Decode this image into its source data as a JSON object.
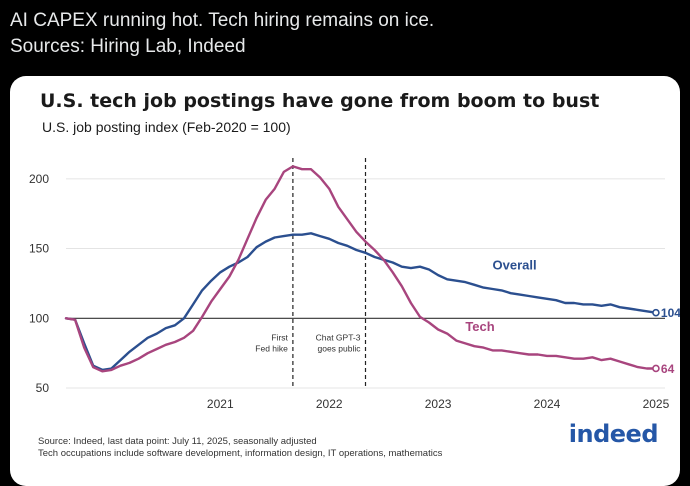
{
  "tweet": {
    "line1": "AI CAPEX running hot. Tech hiring remains on ice.",
    "line2": "Sources: Hiring Lab, Indeed"
  },
  "chart_data": {
    "type": "line",
    "title": "U.S. tech job postings have gone from boom to bust",
    "subtitle": "U.S. job posting index (Feb-2020 = 100)",
    "xlabel": "",
    "ylabel": "",
    "xlim": [
      "2020-02",
      "2025-08"
    ],
    "ylim": [
      50,
      215
    ],
    "yticks": [
      50,
      100,
      150,
      200
    ],
    "xticks": [
      "2021",
      "2022",
      "2023",
      "2024",
      "2025"
    ],
    "grid": true,
    "baseline": 100,
    "series": [
      {
        "name": "Overall",
        "color": "#2b4f8f",
        "end_label": "104",
        "points": [
          [
            "2020-02",
            100
          ],
          [
            "2020-03",
            99
          ],
          [
            "2020-04",
            82
          ],
          [
            "2020-05",
            66
          ],
          [
            "2020-06",
            63
          ],
          [
            "2020-07",
            64
          ],
          [
            "2020-08",
            70
          ],
          [
            "2020-09",
            76
          ],
          [
            "2020-10",
            81
          ],
          [
            "2020-11",
            86
          ],
          [
            "2020-12",
            89
          ],
          [
            "2021-01",
            93
          ],
          [
            "2021-02",
            95
          ],
          [
            "2021-03",
            100
          ],
          [
            "2021-04",
            110
          ],
          [
            "2021-05",
            120
          ],
          [
            "2021-06",
            127
          ],
          [
            "2021-07",
            133
          ],
          [
            "2021-08",
            137
          ],
          [
            "2021-09",
            140
          ],
          [
            "2021-10",
            144
          ],
          [
            "2021-11",
            151
          ],
          [
            "2021-12",
            155
          ],
          [
            "2022-01",
            158
          ],
          [
            "2022-02",
            159
          ],
          [
            "2022-03",
            160
          ],
          [
            "2022-04",
            160
          ],
          [
            "2022-05",
            161
          ],
          [
            "2022-06",
            159
          ],
          [
            "2022-07",
            157
          ],
          [
            "2022-08",
            154
          ],
          [
            "2022-09",
            152
          ],
          [
            "2022-10",
            149
          ],
          [
            "2022-11",
            147
          ],
          [
            "2022-12",
            144
          ],
          [
            "2023-01",
            142
          ],
          [
            "2023-02",
            140
          ],
          [
            "2023-03",
            137
          ],
          [
            "2023-04",
            136
          ],
          [
            "2023-05",
            137
          ],
          [
            "2023-06",
            135
          ],
          [
            "2023-07",
            131
          ],
          [
            "2023-08",
            128
          ],
          [
            "2023-09",
            127
          ],
          [
            "2023-10",
            126
          ],
          [
            "2023-11",
            124
          ],
          [
            "2023-12",
            122
          ],
          [
            "2024-01",
            121
          ],
          [
            "2024-02",
            120
          ],
          [
            "2024-03",
            118
          ],
          [
            "2024-04",
            117
          ],
          [
            "2024-05",
            116
          ],
          [
            "2024-06",
            115
          ],
          [
            "2024-07",
            114
          ],
          [
            "2024-08",
            113
          ],
          [
            "2024-09",
            111
          ],
          [
            "2024-10",
            111
          ],
          [
            "2024-11",
            110
          ],
          [
            "2024-12",
            110
          ],
          [
            "2025-01",
            109
          ],
          [
            "2025-02",
            110
          ],
          [
            "2025-03",
            108
          ],
          [
            "2025-04",
            107
          ],
          [
            "2025-05",
            106
          ],
          [
            "2025-06",
            105
          ],
          [
            "2025-07",
            104
          ]
        ]
      },
      {
        "name": "Tech",
        "color": "#a8457e",
        "end_label": "64",
        "points": [
          [
            "2020-02",
            100
          ],
          [
            "2020-03",
            99
          ],
          [
            "2020-04",
            79
          ],
          [
            "2020-05",
            65
          ],
          [
            "2020-06",
            62
          ],
          [
            "2020-07",
            63
          ],
          [
            "2020-08",
            66
          ],
          [
            "2020-09",
            68
          ],
          [
            "2020-10",
            71
          ],
          [
            "2020-11",
            75
          ],
          [
            "2020-12",
            78
          ],
          [
            "2021-01",
            81
          ],
          [
            "2021-02",
            83
          ],
          [
            "2021-03",
            86
          ],
          [
            "2021-04",
            91
          ],
          [
            "2021-05",
            101
          ],
          [
            "2021-06",
            112
          ],
          [
            "2021-07",
            121
          ],
          [
            "2021-08",
            130
          ],
          [
            "2021-09",
            142
          ],
          [
            "2021-10",
            157
          ],
          [
            "2021-11",
            172
          ],
          [
            "2021-12",
            185
          ],
          [
            "2022-01",
            193
          ],
          [
            "2022-02",
            205
          ],
          [
            "2022-03",
            209
          ],
          [
            "2022-04",
            207
          ],
          [
            "2022-05",
            207
          ],
          [
            "2022-06",
            201
          ],
          [
            "2022-07",
            193
          ],
          [
            "2022-08",
            180
          ],
          [
            "2022-09",
            171
          ],
          [
            "2022-10",
            162
          ],
          [
            "2022-11",
            155
          ],
          [
            "2022-12",
            149
          ],
          [
            "2023-01",
            142
          ],
          [
            "2023-02",
            133
          ],
          [
            "2023-03",
            123
          ],
          [
            "2023-04",
            111
          ],
          [
            "2023-05",
            101
          ],
          [
            "2023-06",
            97
          ],
          [
            "2023-07",
            92
          ],
          [
            "2023-08",
            89
          ],
          [
            "2023-09",
            84
          ],
          [
            "2023-10",
            82
          ],
          [
            "2023-11",
            80
          ],
          [
            "2023-12",
            79
          ],
          [
            "2024-01",
            77
          ],
          [
            "2024-02",
            77
          ],
          [
            "2024-03",
            76
          ],
          [
            "2024-04",
            75
          ],
          [
            "2024-05",
            74
          ],
          [
            "2024-06",
            74
          ],
          [
            "2024-07",
            73
          ],
          [
            "2024-08",
            73
          ],
          [
            "2024-09",
            72
          ],
          [
            "2024-10",
            71
          ],
          [
            "2024-11",
            71
          ],
          [
            "2024-12",
            72
          ],
          [
            "2025-01",
            70
          ],
          [
            "2025-02",
            71
          ],
          [
            "2025-03",
            69
          ],
          [
            "2025-04",
            67
          ],
          [
            "2025-05",
            65
          ],
          [
            "2025-06",
            64
          ],
          [
            "2025-07",
            64
          ]
        ]
      }
    ],
    "annotations": [
      {
        "date": "2022-03",
        "text": "First\nFed hike"
      },
      {
        "date": "2022-11",
        "text": "Chat GPT-3\ngoes public"
      }
    ]
  },
  "footer": {
    "line1": "Source: Indeed, last data point: July 11, 2025, seasonally adjusted",
    "line2": "Tech occupations include software development, information design, IT operations, mathematics"
  },
  "brand": {
    "logo_text": "indeed",
    "color": "#2557a7"
  }
}
